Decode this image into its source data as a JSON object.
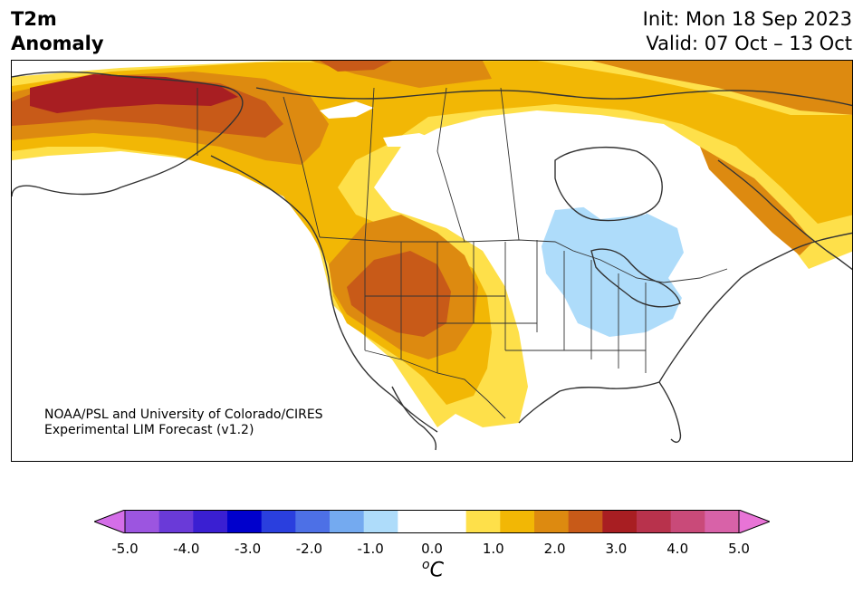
{
  "header": {
    "title_line1": "T2m",
    "title_line2": "Anomaly",
    "init": "Init: Mon 18 Sep 2023",
    "valid": "Valid: 07 Oct – 13 Oct"
  },
  "credit": {
    "line1": "NOAA/PSL and University of Colorado/CIRES",
    "line2": "Experimental LIM Forecast (v1.2)"
  },
  "colorbar": {
    "units_symbol": "C",
    "units_degree": "o",
    "tick_labels": [
      "-5.0",
      "-4.0",
      "-3.0",
      "-2.0",
      "-1.0",
      "0.0",
      "1.0",
      "2.0",
      "3.0",
      "4.0",
      "5.0"
    ],
    "colors": [
      "#d46ee8",
      "#9c55e0",
      "#6a3ad8",
      "#3a1fd2",
      "#0000cc",
      "#2a3fde",
      "#4d70e6",
      "#74aaf0",
      "#aedcfa",
      "#ffffff",
      "#ffffff",
      "#fee04a",
      "#f2b705",
      "#dd8a10",
      "#c85a18",
      "#a81e22",
      "#b8324c",
      "#c94a79",
      "#d862a8",
      "#e874d6"
    ]
  },
  "map": {
    "region": "North America",
    "field": "2m temperature anomaly",
    "colors": {
      "land_outline": "#333333",
      "cool": "#aedcfa",
      "warm1": "#fee04a",
      "warm2": "#f2b705",
      "warm3": "#dd8a10",
      "warm4": "#c85a18",
      "warm5": "#a81e22"
    }
  }
}
